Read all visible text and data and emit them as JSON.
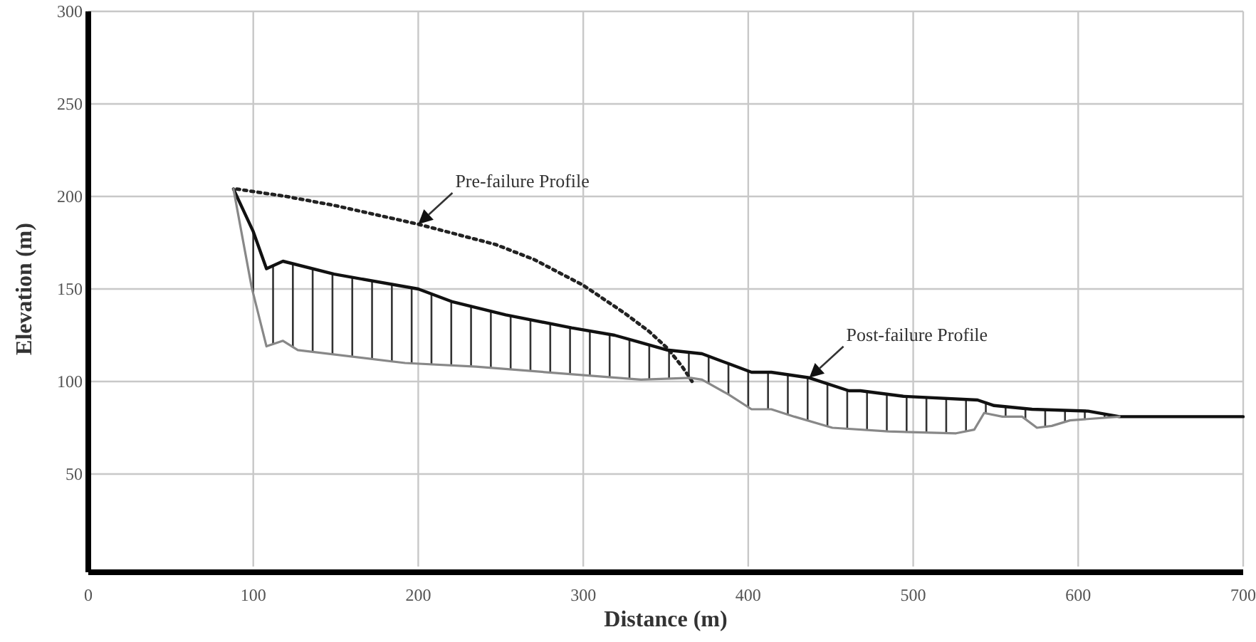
{
  "chart_data": {
    "type": "line",
    "xlabel": "Distance (m)",
    "ylabel": "Elevation (m)",
    "xlim": [
      0,
      700
    ],
    "ylim": [
      0,
      300
    ],
    "xticks": [
      0,
      100,
      200,
      300,
      400,
      500,
      600,
      700
    ],
    "yticks": [
      50,
      100,
      150,
      200,
      250,
      300
    ],
    "grid": true,
    "series": [
      {
        "color": "#222222",
        "line_style": "dotted",
        "x": [
          90,
          120,
          150,
          200,
          247,
          270,
          300,
          325,
          340,
          351,
          360,
          366
        ],
        "values": [
          204,
          200,
          195,
          185,
          174,
          166,
          152,
          137,
          127,
          118,
          108,
          100
        ]
      },
      {
        "color": "#111111",
        "line_style": "solid",
        "x": [
          88,
          100,
          108,
          118,
          149,
          200,
          221,
          253,
          293,
          319,
          335,
          351,
          372,
          402,
          414,
          437,
          461,
          468,
          494,
          539,
          549,
          572,
          606,
          625,
          700
        ],
        "values": [
          204,
          181,
          161,
          165,
          158,
          150,
          143,
          136,
          129,
          125,
          121,
          117,
          115,
          105,
          105,
          102,
          95,
          95,
          92,
          90,
          87,
          85,
          84,
          81,
          81
        ]
      },
      {
        "color": "#888888",
        "line_style": "solid",
        "x": [
          88,
          99,
          108,
          118,
          127,
          192,
          235,
          335,
          365,
          372,
          388,
          402,
          414,
          428,
          451,
          485,
          526,
          537,
          543,
          554,
          566,
          575,
          584,
          595,
          625
        ],
        "values": [
          204,
          151,
          119,
          122,
          117,
          110,
          108,
          101,
          102,
          101,
          93,
          85,
          85,
          81,
          75,
          73,
          72,
          74,
          83,
          81,
          81,
          75,
          76,
          79,
          81
        ]
      }
    ],
    "annotations": [
      {
        "text": "Pre-failure Profile",
        "x": 200,
        "y": 185
      },
      {
        "text": "Post-failure Profile",
        "x": 437,
        "y": 102
      }
    ]
  }
}
